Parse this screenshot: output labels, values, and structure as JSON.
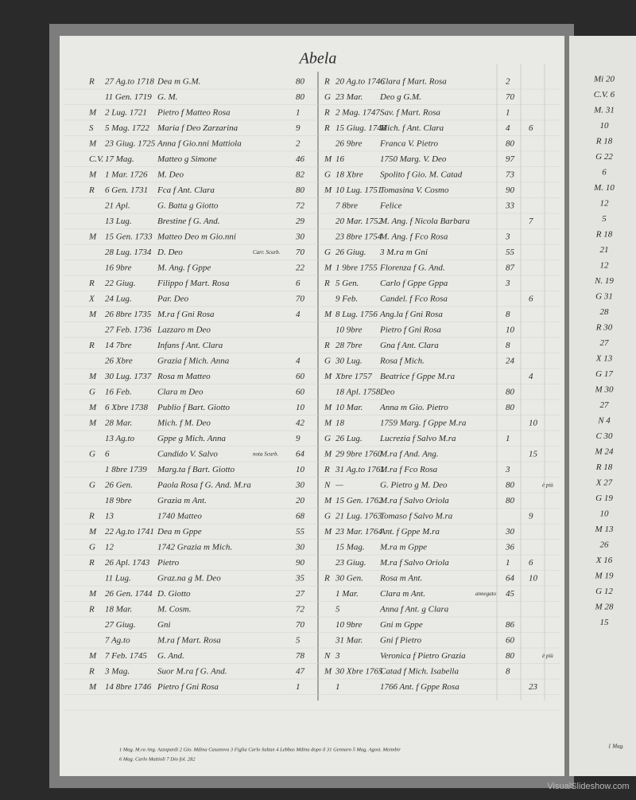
{
  "header": {
    "title": "Abela"
  },
  "left_column": [
    {
      "mark": "R",
      "date": "27 Ag.to 1718",
      "name": "Dea m G.M.",
      "num": "80"
    },
    {
      "date": "11 Gen. 1719",
      "name": "G. M.",
      "num": "80"
    },
    {
      "mark": "M",
      "date": "2 Lug. 1721",
      "name": "Pietro f Matteo Rosa",
      "num": "1"
    },
    {
      "mark": "S",
      "date": "5 Mag. 1722",
      "name": "Maria f Deo Zarzarina",
      "num": "9"
    },
    {
      "mark": "M",
      "date": "23 Giug. 1725",
      "name": "Anna f Gio.nni Mattiola",
      "num": "2"
    },
    {
      "mark": "C.V.",
      "date": "17 Mag.",
      "name": "Matteo g Simone",
      "num": "46"
    },
    {
      "mark": "M",
      "date": "1 Mar. 1726",
      "name": "M. Deo",
      "num": "82"
    },
    {
      "mark": "R",
      "date": "6 Gen. 1731",
      "name": "Fca f Ant. Clara",
      "num": "80"
    },
    {
      "date": "21 Apl.",
      "name": "G. Batta g Giotto",
      "num": "72"
    },
    {
      "date": "13 Lug.",
      "name": "Brestine f G. And.",
      "num": "29"
    },
    {
      "mark": "M",
      "date": "15 Gen. 1733",
      "name": "Matteo Deo m Gio.nni",
      "num": "30"
    },
    {
      "date": "28 Lug. 1734",
      "name": "D. Deo",
      "note": "Carr. Scurb.",
      "num": "70"
    },
    {
      "date": "16 9bre",
      "name": "M. Ang. f Gppe",
      "num": "22"
    },
    {
      "mark": "R",
      "date": "22 Giug.",
      "name": "Filippo f Mart. Rosa",
      "num": "6"
    },
    {
      "mark": "X",
      "date": "24 Lug.",
      "name": "Par. Deo",
      "num": "70"
    },
    {
      "mark": "M",
      "date": "26 8bre 1735",
      "name": "M.ra f Gni Rosa",
      "num": "4"
    },
    {
      "date": "27 Feb. 1736",
      "name": "Lazzaro m Deo"
    },
    {
      "mark": "R",
      "date": "14 7bre",
      "name": "Infans f Ant. Clara"
    },
    {
      "date": "26 Xbre",
      "name": "Grazia f Mich. Anna",
      "num": "4"
    },
    {
      "mark": "M",
      "date": "30 Lug. 1737",
      "name": "Rosa m Matteo",
      "num": "60"
    },
    {
      "mark": "G",
      "date": "16 Feb.",
      "name": "Clara m Deo",
      "num": "60"
    },
    {
      "mark": "M",
      "date": "6 Xbre 1738",
      "name": "Publio f Bart. Giotto",
      "num": "10"
    },
    {
      "mark": "M",
      "date": "28 Mar.",
      "name": "Mich. f M. Deo",
      "num": "42"
    },
    {
      "date": "13 Ag.to",
      "name": "Gppe g Mich. Anna",
      "num": "9"
    },
    {
      "mark": "G",
      "date": "6",
      "name": "Candido V. Salvo",
      "note": "nota Scurb.",
      "num": "64"
    },
    {
      "date": "1 8bre 1739",
      "name": "Marg.ta f Bart. Giotto",
      "num": "10"
    },
    {
      "mark": "G",
      "date": "26 Gen.",
      "name": "Paola Rosa f G. And. M.ra",
      "num": "30"
    },
    {
      "date": "18 9bre",
      "name": "Grazia m Ant.",
      "num": "20"
    },
    {
      "mark": "R",
      "date": "13",
      "name": "1740 Matteo",
      "num": "68"
    },
    {
      "mark": "M",
      "date": "22 Ag.to 1741",
      "name": "Dea m Gppe",
      "num": "55"
    },
    {
      "mark": "G",
      "date": "12",
      "name": "1742 Grazia m Mich.",
      "num": "30"
    },
    {
      "mark": "R",
      "date": "26 Apl. 1743",
      "name": "Pietro",
      "num": "90"
    },
    {
      "date": "11 Lug.",
      "name": "Graz.na g M. Deo",
      "num": "35"
    },
    {
      "mark": "M",
      "date": "26 Gen. 1744",
      "name": "D. Giotto",
      "num": "27"
    },
    {
      "mark": "R",
      "date": "18 Mar.",
      "name": "M. Cosm.",
      "num": "72"
    },
    {
      "date": "27 Giug.",
      "name": "Gni",
      "num": "70"
    },
    {
      "date": "7 Ag.to",
      "name": "M.ra f Mart. Rosa",
      "num": "5"
    },
    {
      "mark": "M",
      "date": "7 Feb. 1745",
      "name": "G. And.",
      "num": "78"
    },
    {
      "mark": "R",
      "date": "3 Mag.",
      "name": "Suor M.ra f G. And.",
      "num": "47"
    },
    {
      "mark": "M",
      "date": "14 8bre 1746",
      "name": "Pietro f Gni Rosa",
      "num": "1"
    }
  ],
  "right_column": [
    {
      "mark": "R",
      "date": "20 Ag.to 1746",
      "name": "Clara f Mart. Rosa",
      "num": "2"
    },
    {
      "mark": "G",
      "date": "23 Mar.",
      "name": "Deo g G.M.",
      "num": "70"
    },
    {
      "mark": "R",
      "date": "2 Mag. 1747",
      "name": "Sav. f Mart. Rosa",
      "num": "1"
    },
    {
      "mark": "R",
      "date": "15 Giug. 1748",
      "name": "Mich. f Ant. Clara",
      "num": "4",
      "extra": "6"
    },
    {
      "date": "26 9bre",
      "name": "Franca V. Pietro",
      "num": "80"
    },
    {
      "mark": "M",
      "date": "16",
      "name": "1750 Marg. V. Deo",
      "num": "97"
    },
    {
      "mark": "G",
      "date": "18 Xbre",
      "name": "Spolito f Gio. M. Catad",
      "num": "73"
    },
    {
      "mark": "M",
      "date": "10 Lug. 1751",
      "name": "Tomasina V. Cosmo",
      "num": "90"
    },
    {
      "date": "7 8bre",
      "name": "Felice",
      "num": "33"
    },
    {
      "date": "20 Mar. 1752",
      "name": "M. Ang. f Nicola Barbara",
      "extra": "7"
    },
    {
      "date": "23 8bre 1754",
      "name": "M. Ang. f Fco Rosa",
      "num": "3"
    },
    {
      "mark": "G",
      "date": "26 Giug.",
      "name": "3 M.ra m Gni",
      "num": "55"
    },
    {
      "mark": "M",
      "date": "1 9bre 1755",
      "name": "Florenza f G. And.",
      "num": "87"
    },
    {
      "mark": "R",
      "date": "5 Gen.",
      "name": "Carlo f Gppe Gppa",
      "num": "3"
    },
    {
      "date": "9 Feb.",
      "name": "Candel. f Fco Rosa",
      "extra": "6"
    },
    {
      "mark": "M",
      "date": "8 Lug. 1756",
      "name": "Ang.la f Gni Rosa",
      "num": "8"
    },
    {
      "date": "10 9bre",
      "name": "Pietro f Gni Rosa",
      "num": "10"
    },
    {
      "mark": "R",
      "date": "28 7bre",
      "name": "Gna f Ant. Clara",
      "num": "8"
    },
    {
      "mark": "G",
      "date": "30 Lug.",
      "name": "Rosa f Mich.",
      "num": "24"
    },
    {
      "mark": "M",
      "date": "Xbre 1757",
      "name": "Beatrice f Gppe M.ra",
      "extra": "4"
    },
    {
      "date": "18 Apl. 1758",
      "name": "Deo",
      "num": "80"
    },
    {
      "mark": "M",
      "date": "10 Mar.",
      "name": "Anna m Gio. Pietro",
      "num": "80"
    },
    {
      "mark": "M",
      "date": "18",
      "name": "1759 Marg. f Gppe M.ra",
      "extra": "10"
    },
    {
      "mark": "G",
      "date": "26 Lug.",
      "name": "Lucrezia f Salvo M.ra",
      "num": "1"
    },
    {
      "mark": "M",
      "date": "29 9bre 1760",
      "name": "M.ra f And. Ang.",
      "extra": "15"
    },
    {
      "mark": "R",
      "date": "31 Ag.to 1761",
      "name": "M.ra f Fco Rosa",
      "num": "3"
    },
    {
      "mark": "N",
      "date": "—",
      "name": "G. Pietro g M. Deo",
      "num": "80",
      "note2": "è più"
    },
    {
      "mark": "M",
      "date": "15 Gen. 1762",
      "name": "M.ra f Salvo Oriola",
      "num": "80"
    },
    {
      "mark": "G",
      "date": "21 Lug. 1763",
      "name": "Tomaso f Salvo M.ra",
      "extra": "9"
    },
    {
      "mark": "M",
      "date": "23 Mar. 1764",
      "name": "Ant. f Gppe M.ra",
      "num": "30"
    },
    {
      "date": "15 Mag.",
      "name": "M.ra m Gppe",
      "num": "36"
    },
    {
      "date": "23 Giug.",
      "name": "M.ra f Salvo Oriola",
      "num": "1",
      "extra": "6"
    },
    {
      "mark": "R",
      "date": "30 Gen.",
      "name": "Rosa m Ant.",
      "num": "64",
      "extra": "10"
    },
    {
      "date": "1 Mar.",
      "name": "Clara m Ant.",
      "note": "annegato",
      "num": "45"
    },
    {
      "date": "5",
      "name": "Anna f Ant. g Clara"
    },
    {
      "date": "10 9bre",
      "name": "Gni m Gppe",
      "num": "86"
    },
    {
      "date": "31 Mar.",
      "name": "Gni f Pietro",
      "num": "60"
    },
    {
      "mark": "N",
      "date": "3",
      "name": "Veronica f Pietro Grazia",
      "num": "80",
      "note2": "è più"
    },
    {
      "mark": "M",
      "date": "30 Xbre 1765",
      "name": "Catad f Mich. Isabella",
      "num": "8"
    },
    {
      "date": "1",
      "name": "1766 Ant. f Gppe Rosa",
      "extra": "23"
    }
  ],
  "next_page": [
    "Mi 20",
    "C.V. 6",
    "M. 31",
    "10",
    "R 18",
    "G 22",
    "6",
    "M. 10",
    "12",
    "5",
    "R 18",
    "21",
    "12",
    "N. 19",
    "G 31",
    "28",
    "R 30",
    "27",
    "X 13",
    "G 17",
    "M 30",
    "27",
    "N 4",
    "C 30",
    "M 24",
    "R 18",
    "X 27",
    "G 19",
    "10",
    "M 13",
    "26",
    "X 16",
    "M 19",
    "G 12",
    "M 28",
    "15"
  ],
  "footnote": [
    "1 Mag. M.ra Ang. Azzopardi 2 Gio. Mdina Casanova 3 Figlia Carlo Sultan 4 Lebbas Mdina dopo il 31 Gennaro 5 Mag. Agost. Meimbir",
    "6 Mag. Carlo Mattioli 7 Dio fol. 282"
  ],
  "next_page_footnote": "1 Mag.",
  "watermark": "VisualSlideshow.com"
}
